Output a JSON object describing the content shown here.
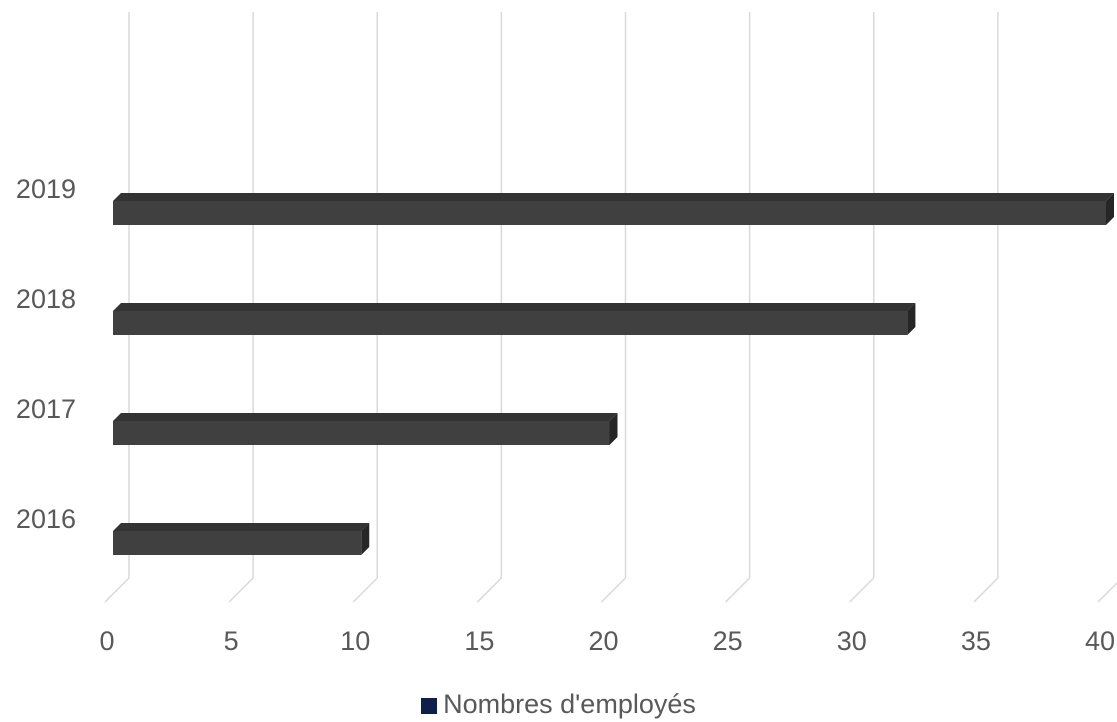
{
  "chart_data": {
    "type": "bar",
    "orientation": "horizontal",
    "categories": [
      "2016",
      "2017",
      "2018",
      "2019"
    ],
    "series": [
      {
        "name": "Nombres d'employés",
        "values": [
          10,
          20,
          32,
          40
        ]
      }
    ],
    "xlim": [
      0,
      40
    ],
    "xticks": [
      "0",
      "5",
      "10",
      "15",
      "20",
      "25",
      "30",
      "35",
      "40"
    ],
    "grid": true,
    "legend_position": "bottom",
    "style": "3d",
    "colors": {
      "bar": "#404040",
      "bar_top": "#333333",
      "bar_side": "#262626",
      "grid": "#d9d9d9",
      "legend_swatch": "#0d1f4a"
    }
  }
}
